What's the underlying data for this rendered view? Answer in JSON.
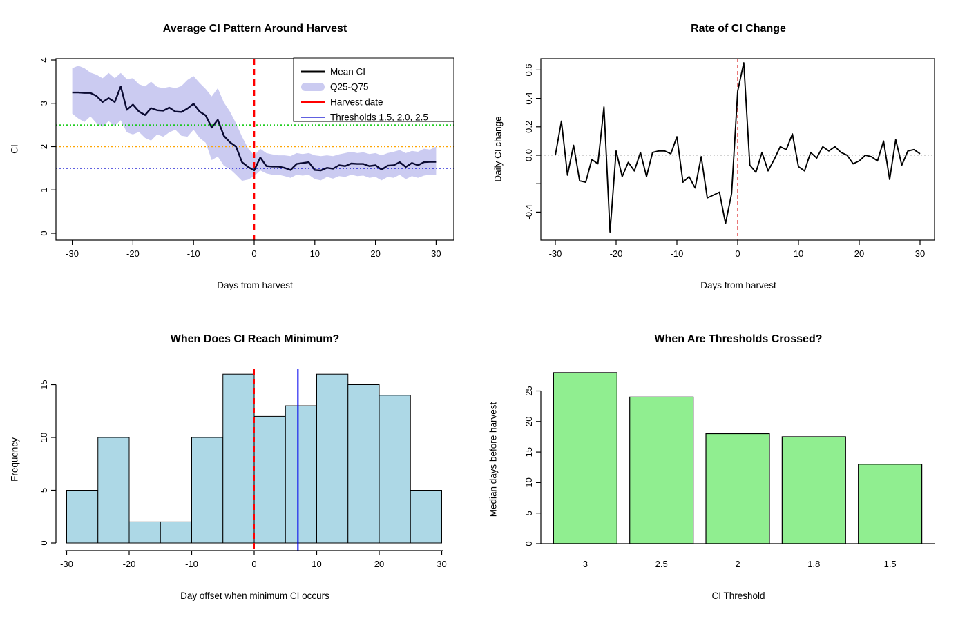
{
  "figure": {
    "background": "#ffffff"
  },
  "chart_data": [
    {
      "type": "line",
      "panel": "top-left",
      "title": "Average CI Pattern Around Harvest",
      "xlabel": "Days from harvest",
      "ylabel": "CI",
      "xlim": [
        -32.5,
        32.5
      ],
      "ylim": [
        0,
        4
      ],
      "xticks": {
        "values": [
          -30,
          -20,
          -10,
          0,
          10,
          20,
          30
        ],
        "labels": [
          "-30",
          "-20",
          "-10",
          "0",
          "10",
          "20",
          "30"
        ]
      },
      "yticks": {
        "values": [
          0,
          1,
          2,
          3,
          4
        ],
        "labels": [
          "0",
          "1",
          "2",
          "3",
          "4"
        ]
      },
      "x": [
        -30,
        -29,
        -28,
        -27,
        -26,
        -25,
        -24,
        -23,
        -22,
        -21,
        -20,
        -19,
        -18,
        -17,
        -16,
        -15,
        -14,
        -13,
        -12,
        -11,
        -10,
        -9,
        -8,
        -7,
        -6,
        -5,
        -4,
        -3,
        -2,
        -1,
        0,
        1,
        2,
        3,
        4,
        5,
        6,
        7,
        8,
        9,
        10,
        11,
        12,
        13,
        14,
        15,
        16,
        17,
        18,
        19,
        20,
        21,
        22,
        23,
        24,
        25,
        26,
        27,
        28,
        29,
        30
      ],
      "mean": [
        3.25,
        3.25,
        3.24,
        3.24,
        3.17,
        3.03,
        3.12,
        3.03,
        3.39,
        2.85,
        2.97,
        2.81,
        2.73,
        2.89,
        2.84,
        2.83,
        2.9,
        2.81,
        2.8,
        2.88,
        2.99,
        2.81,
        2.72,
        2.44,
        2.62,
        2.25,
        2.1,
        2.0,
        1.64,
        1.53,
        1.45,
        1.75,
        1.55,
        1.54,
        1.54,
        1.51,
        1.46,
        1.6,
        1.62,
        1.64,
        1.46,
        1.45,
        1.51,
        1.49,
        1.57,
        1.55,
        1.61,
        1.6,
        1.6,
        1.55,
        1.57,
        1.47,
        1.56,
        1.57,
        1.64,
        1.53,
        1.62,
        1.57,
        1.64,
        1.65,
        1.65
      ],
      "q75": [
        3.81,
        3.87,
        3.81,
        3.71,
        3.66,
        3.58,
        3.7,
        3.58,
        3.7,
        3.56,
        3.58,
        3.44,
        3.39,
        3.5,
        3.38,
        3.35,
        3.38,
        3.35,
        3.4,
        3.54,
        3.63,
        3.47,
        3.33,
        3.16,
        3.35,
        3.02,
        2.81,
        2.54,
        2.23,
        1.96,
        1.8,
        1.95,
        1.85,
        1.82,
        1.8,
        1.8,
        1.78,
        1.85,
        1.83,
        1.85,
        1.8,
        1.78,
        1.8,
        1.78,
        1.82,
        1.85,
        1.88,
        1.85,
        1.87,
        1.83,
        1.85,
        1.8,
        1.85,
        1.88,
        1.92,
        1.85,
        1.9,
        1.88,
        1.95,
        1.93,
        2.0
      ],
      "q25": [
        2.76,
        2.65,
        2.57,
        2.7,
        2.54,
        2.46,
        2.59,
        2.48,
        2.61,
        2.33,
        2.28,
        2.34,
        2.2,
        2.14,
        2.28,
        2.23,
        2.33,
        2.39,
        2.25,
        2.23,
        2.39,
        2.2,
        2.09,
        1.69,
        1.77,
        1.56,
        1.48,
        1.35,
        1.21,
        1.24,
        1.32,
        1.45,
        1.38,
        1.35,
        1.35,
        1.32,
        1.28,
        1.35,
        1.33,
        1.35,
        1.25,
        1.22,
        1.3,
        1.26,
        1.32,
        1.3,
        1.35,
        1.32,
        1.33,
        1.28,
        1.3,
        1.22,
        1.3,
        1.28,
        1.35,
        1.25,
        1.32,
        1.28,
        1.33,
        1.35,
        1.35
      ],
      "mean_color": "#0a0a32",
      "ribbon_color": "#cbcbf1",
      "harvest_line": {
        "x": 0,
        "color": "#ff0000",
        "style": "dashed"
      },
      "thresholds": [
        {
          "value": 1.5,
          "color": "#0000cd"
        },
        {
          "value": 2.0,
          "color": "#ffa500"
        },
        {
          "value": 2.5,
          "color": "#00c800"
        }
      ],
      "legend": {
        "position": "top-right",
        "items": [
          {
            "label": "Mean CI",
            "type": "line",
            "color": "#000000"
          },
          {
            "label": "Q25-Q75",
            "type": "band",
            "color": "#cbcbf1"
          },
          {
            "label": "Harvest date",
            "type": "line",
            "color": "#ff0000"
          },
          {
            "label": "Thresholds 1.5, 2.0, 2.5",
            "type": "thin-line",
            "color": "#0000cd"
          }
        ]
      }
    },
    {
      "type": "line",
      "panel": "top-right",
      "title": "Rate of CI Change",
      "xlabel": "Days from harvest",
      "ylabel": "Daily CI change",
      "xlim": [
        -32.5,
        32.5
      ],
      "ylim": [
        -0.58,
        0.68
      ],
      "xticks": {
        "values": [
          -30,
          -20,
          -10,
          0,
          10,
          20,
          30
        ],
        "labels": [
          "-30",
          "-20",
          "-10",
          "0",
          "10",
          "20",
          "30"
        ]
      },
      "yticks": {
        "values": [
          0.6,
          0.4,
          0.2,
          0.0,
          -0.2,
          -0.4
        ],
        "labels": [
          "0.6",
          "0.4",
          "0.2",
          "0.0",
          "",
          "-0.4"
        ]
      },
      "x": [
        -30,
        -29,
        -28,
        -27,
        -26,
        -25,
        -24,
        -23,
        -22,
        -21,
        -20,
        -19,
        -18,
        -17,
        -16,
        -15,
        -14,
        -13,
        -12,
        -11,
        -10,
        -9,
        -8,
        -7,
        -6,
        -5,
        -4,
        -3,
        -2,
        -1,
        0,
        1,
        2,
        3,
        4,
        5,
        6,
        7,
        8,
        9,
        10,
        11,
        12,
        13,
        14,
        15,
        16,
        17,
        18,
        19,
        20,
        21,
        22,
        23,
        24,
        25,
        26,
        27,
        28,
        29,
        30
      ],
      "values": [
        0.0,
        0.24,
        -0.14,
        0.07,
        -0.18,
        -0.19,
        -0.03,
        -0.06,
        0.34,
        -0.54,
        0.03,
        -0.15,
        -0.05,
        -0.11,
        0.02,
        -0.15,
        0.02,
        0.03,
        0.03,
        0.01,
        0.13,
        -0.19,
        -0.15,
        -0.23,
        -0.01,
        -0.3,
        -0.28,
        -0.26,
        -0.48,
        -0.27,
        0.45,
        0.65,
        -0.07,
        -0.12,
        0.02,
        -0.11,
        -0.03,
        0.06,
        0.04,
        0.15,
        -0.08,
        -0.11,
        0.02,
        -0.02,
        0.06,
        0.03,
        0.06,
        0.02,
        0.0,
        -0.06,
        -0.04,
        0.0,
        -0.01,
        -0.04,
        0.1,
        -0.17,
        0.11,
        -0.07,
        0.03,
        0.04,
        0.01
      ],
      "line_color": "#000000",
      "zero_line": {
        "y": 0,
        "color": "#b8b8b8",
        "style": "dotted"
      },
      "harvest_line": {
        "x": 0,
        "color": "#dd2f2f",
        "style": "dashed"
      }
    },
    {
      "type": "histogram",
      "panel": "bottom-left",
      "title": "When Does CI Reach Minimum?",
      "xlabel": "Day offset when minimum CI occurs",
      "ylabel": "Frequency",
      "xticks": {
        "values": [
          -30,
          -20,
          -10,
          0,
          10,
          20,
          30
        ],
        "labels": [
          "-30",
          "-20",
          "-10",
          "0",
          "10",
          "20",
          "30"
        ]
      },
      "yticks": {
        "values": [
          0,
          5,
          10,
          15
        ],
        "labels": [
          "0",
          "5",
          "10",
          "15"
        ]
      },
      "bin_width": 5,
      "breaks": [
        -30,
        -25,
        -20,
        -15,
        -10,
        -5,
        0,
        5,
        10,
        15,
        20,
        25,
        30
      ],
      "counts": [
        5,
        10,
        2,
        2,
        10,
        16,
        12,
        13,
        16,
        15,
        14,
        5
      ],
      "bar_fill": "#add8e6",
      "bar_stroke": "#000000",
      "vlines": [
        {
          "x": 0,
          "color": "#ff0000",
          "style": "dashed"
        },
        {
          "x": 7,
          "color": "#0000ee",
          "style": "solid"
        }
      ]
    },
    {
      "type": "bar",
      "panel": "bottom-right",
      "title": "When Are Thresholds Crossed?",
      "xlabel": "CI Threshold",
      "ylabel": "Median days before harvest",
      "categories": [
        "3",
        "2.5",
        "2",
        "1.8",
        "1.5"
      ],
      "values": [
        28,
        24,
        18,
        17.5,
        13
      ],
      "yticks": {
        "values": [
          0,
          5,
          10,
          15,
          20,
          25
        ],
        "labels": [
          "0",
          "5",
          "10",
          "15",
          "20",
          "25"
        ]
      },
      "bar_fill": "#90ee90",
      "bar_stroke": "#000000"
    }
  ]
}
